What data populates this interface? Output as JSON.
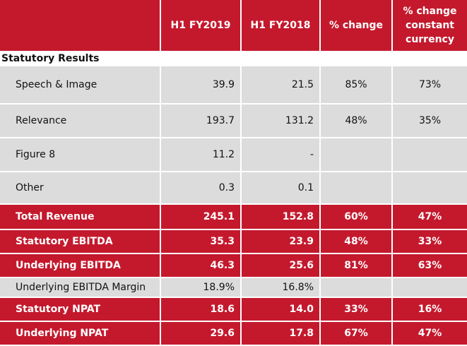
{
  "header": {
    "col0": "",
    "col1": "H1 FY2019",
    "col2": "H1 FY2018",
    "col3": "% change",
    "col4": "% change constant currency"
  },
  "section_title": "Statutory Results",
  "rows": [
    {
      "label": "Speech & Image",
      "v1": "39.9",
      "v2": "21.5",
      "v3": "85%",
      "v4": "73%",
      "style": "grey"
    },
    {
      "label": "Relevance",
      "v1": "193.7",
      "v2": "131.2",
      "v3": "48%",
      "v4": "35%",
      "style": "grey"
    },
    {
      "label": "Figure 8",
      "v1": "11.2",
      "v2": "-",
      "v3": "",
      "v4": "",
      "style": "grey"
    },
    {
      "label": "Other",
      "v1": "0.3",
      "v2": "0.1",
      "v3": "",
      "v4": "",
      "style": "grey"
    },
    {
      "label": "Total Revenue",
      "v1": "245.1",
      "v2": "152.8",
      "v3": "60%",
      "v4": "47%",
      "style": "red"
    },
    {
      "label": "Statutory EBITDA",
      "v1": "35.3",
      "v2": "23.9",
      "v3": "48%",
      "v4": "33%",
      "style": "red"
    },
    {
      "label": "Underlying EBITDA",
      "v1": "46.3",
      "v2": "25.6",
      "v3": "81%",
      "v4": "63%",
      "style": "red"
    },
    {
      "label": "Underlying EBITDA Margin",
      "v1": "18.9%",
      "v2": "16.8%",
      "v3": "",
      "v4": "",
      "style": "grey"
    },
    {
      "label": "Statutory NPAT",
      "v1": "18.6",
      "v2": "14.0",
      "v3": "33%",
      "v4": "16%",
      "style": "red"
    },
    {
      "label": "Underlying NPAT",
      "v1": "29.6",
      "v2": "17.8",
      "v3": "67%",
      "v4": "47%",
      "style": "red"
    }
  ],
  "colors": {
    "accent_red": "#c4192d",
    "row_grey": "#dcdcdc",
    "text_white": "#ffffff"
  }
}
